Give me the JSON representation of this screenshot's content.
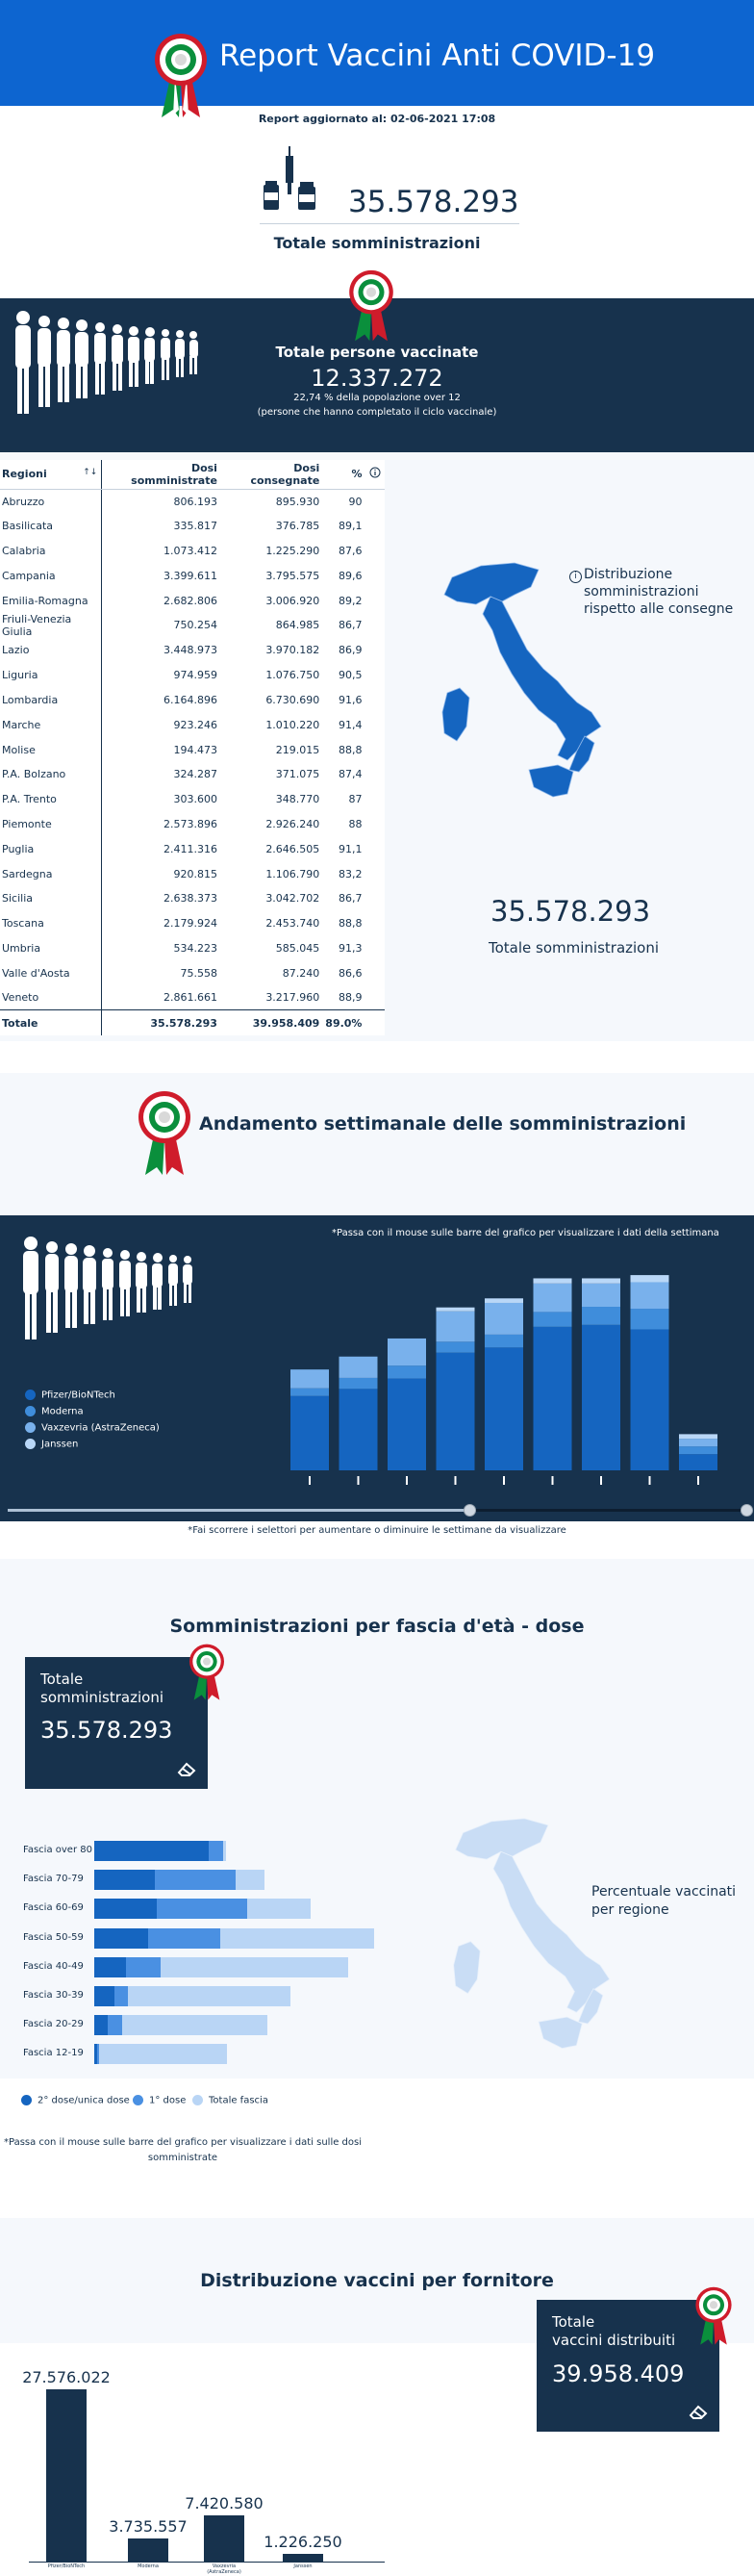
{
  "header": {
    "title": "Report Vaccini Anti COVID-19",
    "updated": "Report aggiornato al: 02-06-2021 17:08"
  },
  "totals": {
    "administrations": "35.578.293",
    "administrations_label": "Totale somministrazioni"
  },
  "vaccinated": {
    "title": "Totale persone vaccinate",
    "value": "12.337.272",
    "percent_text": "22,74 % della popolazione over 12",
    "note": "(persone che hanno completato il ciclo vaccinale)"
  },
  "table": {
    "headers": [
      "Regioni",
      "Dosi somministrate",
      "Dosi consegnate",
      "%"
    ],
    "rows": [
      [
        "Abruzzo",
        "806.193",
        "895.930",
        "90"
      ],
      [
        "Basilicata",
        "335.817",
        "376.785",
        "89,1"
      ],
      [
        "Calabria",
        "1.073.412",
        "1.225.290",
        "87,6"
      ],
      [
        "Campania",
        "3.399.611",
        "3.795.575",
        "89,6"
      ],
      [
        "Emilia-Romagna",
        "2.682.806",
        "3.006.920",
        "89,2"
      ],
      [
        "Friuli-Venezia Giulia",
        "750.254",
        "864.985",
        "86,7"
      ],
      [
        "Lazio",
        "3.448.973",
        "3.970.182",
        "86,9"
      ],
      [
        "Liguria",
        "974.959",
        "1.076.750",
        "90,5"
      ],
      [
        "Lombardia",
        "6.164.896",
        "6.730.690",
        "91,6"
      ],
      [
        "Marche",
        "923.246",
        "1.010.220",
        "91,4"
      ],
      [
        "Molise",
        "194.473",
        "219.015",
        "88,8"
      ],
      [
        "P.A. Bolzano",
        "324.287",
        "371.075",
        "87,4"
      ],
      [
        "P.A. Trento",
        "303.600",
        "348.770",
        "87"
      ],
      [
        "Piemonte",
        "2.573.896",
        "2.926.240",
        "88"
      ],
      [
        "Puglia",
        "2.411.316",
        "2.646.505",
        "91,1"
      ],
      [
        "Sardegna",
        "920.815",
        "1.106.790",
        "83,2"
      ],
      [
        "Sicilia",
        "2.638.373",
        "3.042.702",
        "86,7"
      ],
      [
        "Toscana",
        "2.179.924",
        "2.453.740",
        "88,8"
      ],
      [
        "Umbria",
        "534.223",
        "585.045",
        "91,3"
      ],
      [
        "Valle d'Aosta",
        "75.558",
        "87.240",
        "86,6"
      ],
      [
        "Veneto",
        "2.861.661",
        "3.217.960",
        "88,9"
      ]
    ],
    "total": [
      "Totale",
      "35.578.293",
      "39.958.409",
      "89.0%"
    ],
    "info_icon": "info-circle-icon",
    "sort_icon": "sort-arrows-icon"
  },
  "map_section": {
    "legend_lines": [
      "Distribuzione",
      "somministrazioni",
      "rispetto alle consegne"
    ],
    "total_value": "35.578.293",
    "total_label": "Totale somministrazioni"
  },
  "weekly": {
    "title": "Andamento settimanale delle somministrazioni",
    "hover_note": "*Passa con il mouse sulle barre del grafico per visualizzare i dati della settimana",
    "slider_note": "*Fai scorrere i selettori per aumentare o diminuire le settimane da visualizzare",
    "legend": [
      "Pfizer/BioNTech",
      "Moderna",
      "Vaxzevria (AstraZeneca)",
      "Janssen"
    ],
    "colors": [
      "#1565c0",
      "#3f8ddb",
      "#79b1ec",
      "#b9d7f7"
    ]
  },
  "chart_data": [
    {
      "type": "bar",
      "stacked": true,
      "series": [
        {
          "name": "Pfizer/BioNTech",
          "values": [
            1150000,
            1260000,
            1420000,
            1820000,
            1900000,
            2220000,
            2250000,
            2180000,
            250000
          ]
        },
        {
          "name": "Moderna",
          "values": [
            120000,
            170000,
            200000,
            170000,
            200000,
            230000,
            280000,
            320000,
            120000
          ]
        },
        {
          "name": "Vaxzevria (AstraZeneca)",
          "values": [
            290000,
            330000,
            420000,
            470000,
            490000,
            440000,
            360000,
            410000,
            120000
          ]
        },
        {
          "name": "Janssen",
          "values": [
            0,
            0,
            0,
            60000,
            70000,
            80000,
            80000,
            110000,
            70000
          ]
        }
      ],
      "ylim": [
        0,
        3200000
      ]
    },
    {
      "type": "bar",
      "orientation": "horizontal",
      "stacked": false,
      "categories": [
        "Fascia over 80",
        "Fascia 70-79",
        "Fascia 60-69",
        "Fascia 50-59",
        "Fascia 40-49",
        "Fascia 30-39",
        "Fascia 20-29",
        "Fascia 12-19"
      ],
      "series": [
        {
          "name": "2° dose/unica dose",
          "values": [
            3950000,
            2100000,
            2160000,
            1880000,
            1100000,
            700000,
            480000,
            100000
          ]
        },
        {
          "name": "1° dose",
          "values": [
            4450000,
            4900000,
            5300000,
            4350000,
            2300000,
            1150000,
            950000,
            150000
          ]
        },
        {
          "name": "Totale fascia",
          "values": [
            4550000,
            5900000,
            7500000,
            9700000,
            8800000,
            6800000,
            6000000,
            4600000
          ]
        }
      ],
      "xlim": [
        0,
        10000000
      ]
    },
    {
      "type": "bar",
      "categories": [
        "Pfizer/BioNTech",
        "Moderna",
        "Vaxzevria (AstraZeneca)",
        "Janssen"
      ],
      "values": [
        27576022,
        3735557,
        7420580,
        1226250
      ],
      "ylim": [
        0,
        30000000
      ]
    }
  ],
  "age": {
    "title": "Somministrazioni per fascia d'età - dose",
    "box_line1": "Totale",
    "box_line2": "somministrazioni",
    "box_value": "35.578.293",
    "categories": [
      "Fascia over 80",
      "Fascia 70-79",
      "Fascia 60-69",
      "Fascia 50-59",
      "Fascia 40-49",
      "Fascia 30-39",
      "Fascia 20-29",
      "Fascia 12-19"
    ],
    "legend": [
      "2° dose/unica dose",
      "1° dose",
      "Totale fascia"
    ],
    "colors": [
      "#1565c0",
      "#4a90e2",
      "#b9d5f5"
    ],
    "note_line1": "*Passa con il mouse sulle barre del grafico per visualizzare i dati sulle dosi",
    "note_line2": "somministrate",
    "map_label_line1": "Percentuale vaccinati",
    "map_label_line2": "per regione"
  },
  "suppliers": {
    "title": "Distribuzione vaccini per fornitore",
    "box_line1": "Totale",
    "box_line2": "vaccini distribuiti",
    "box_value": "39.958.409",
    "value_labels": [
      "27.576.022",
      "3.735.557",
      "7.420.580",
      "1.226.250"
    ],
    "names": [
      "Pfizer/BioNTech",
      "Moderna",
      "Vaxzevria (AstraZeneca)",
      "Janssen"
    ]
  }
}
